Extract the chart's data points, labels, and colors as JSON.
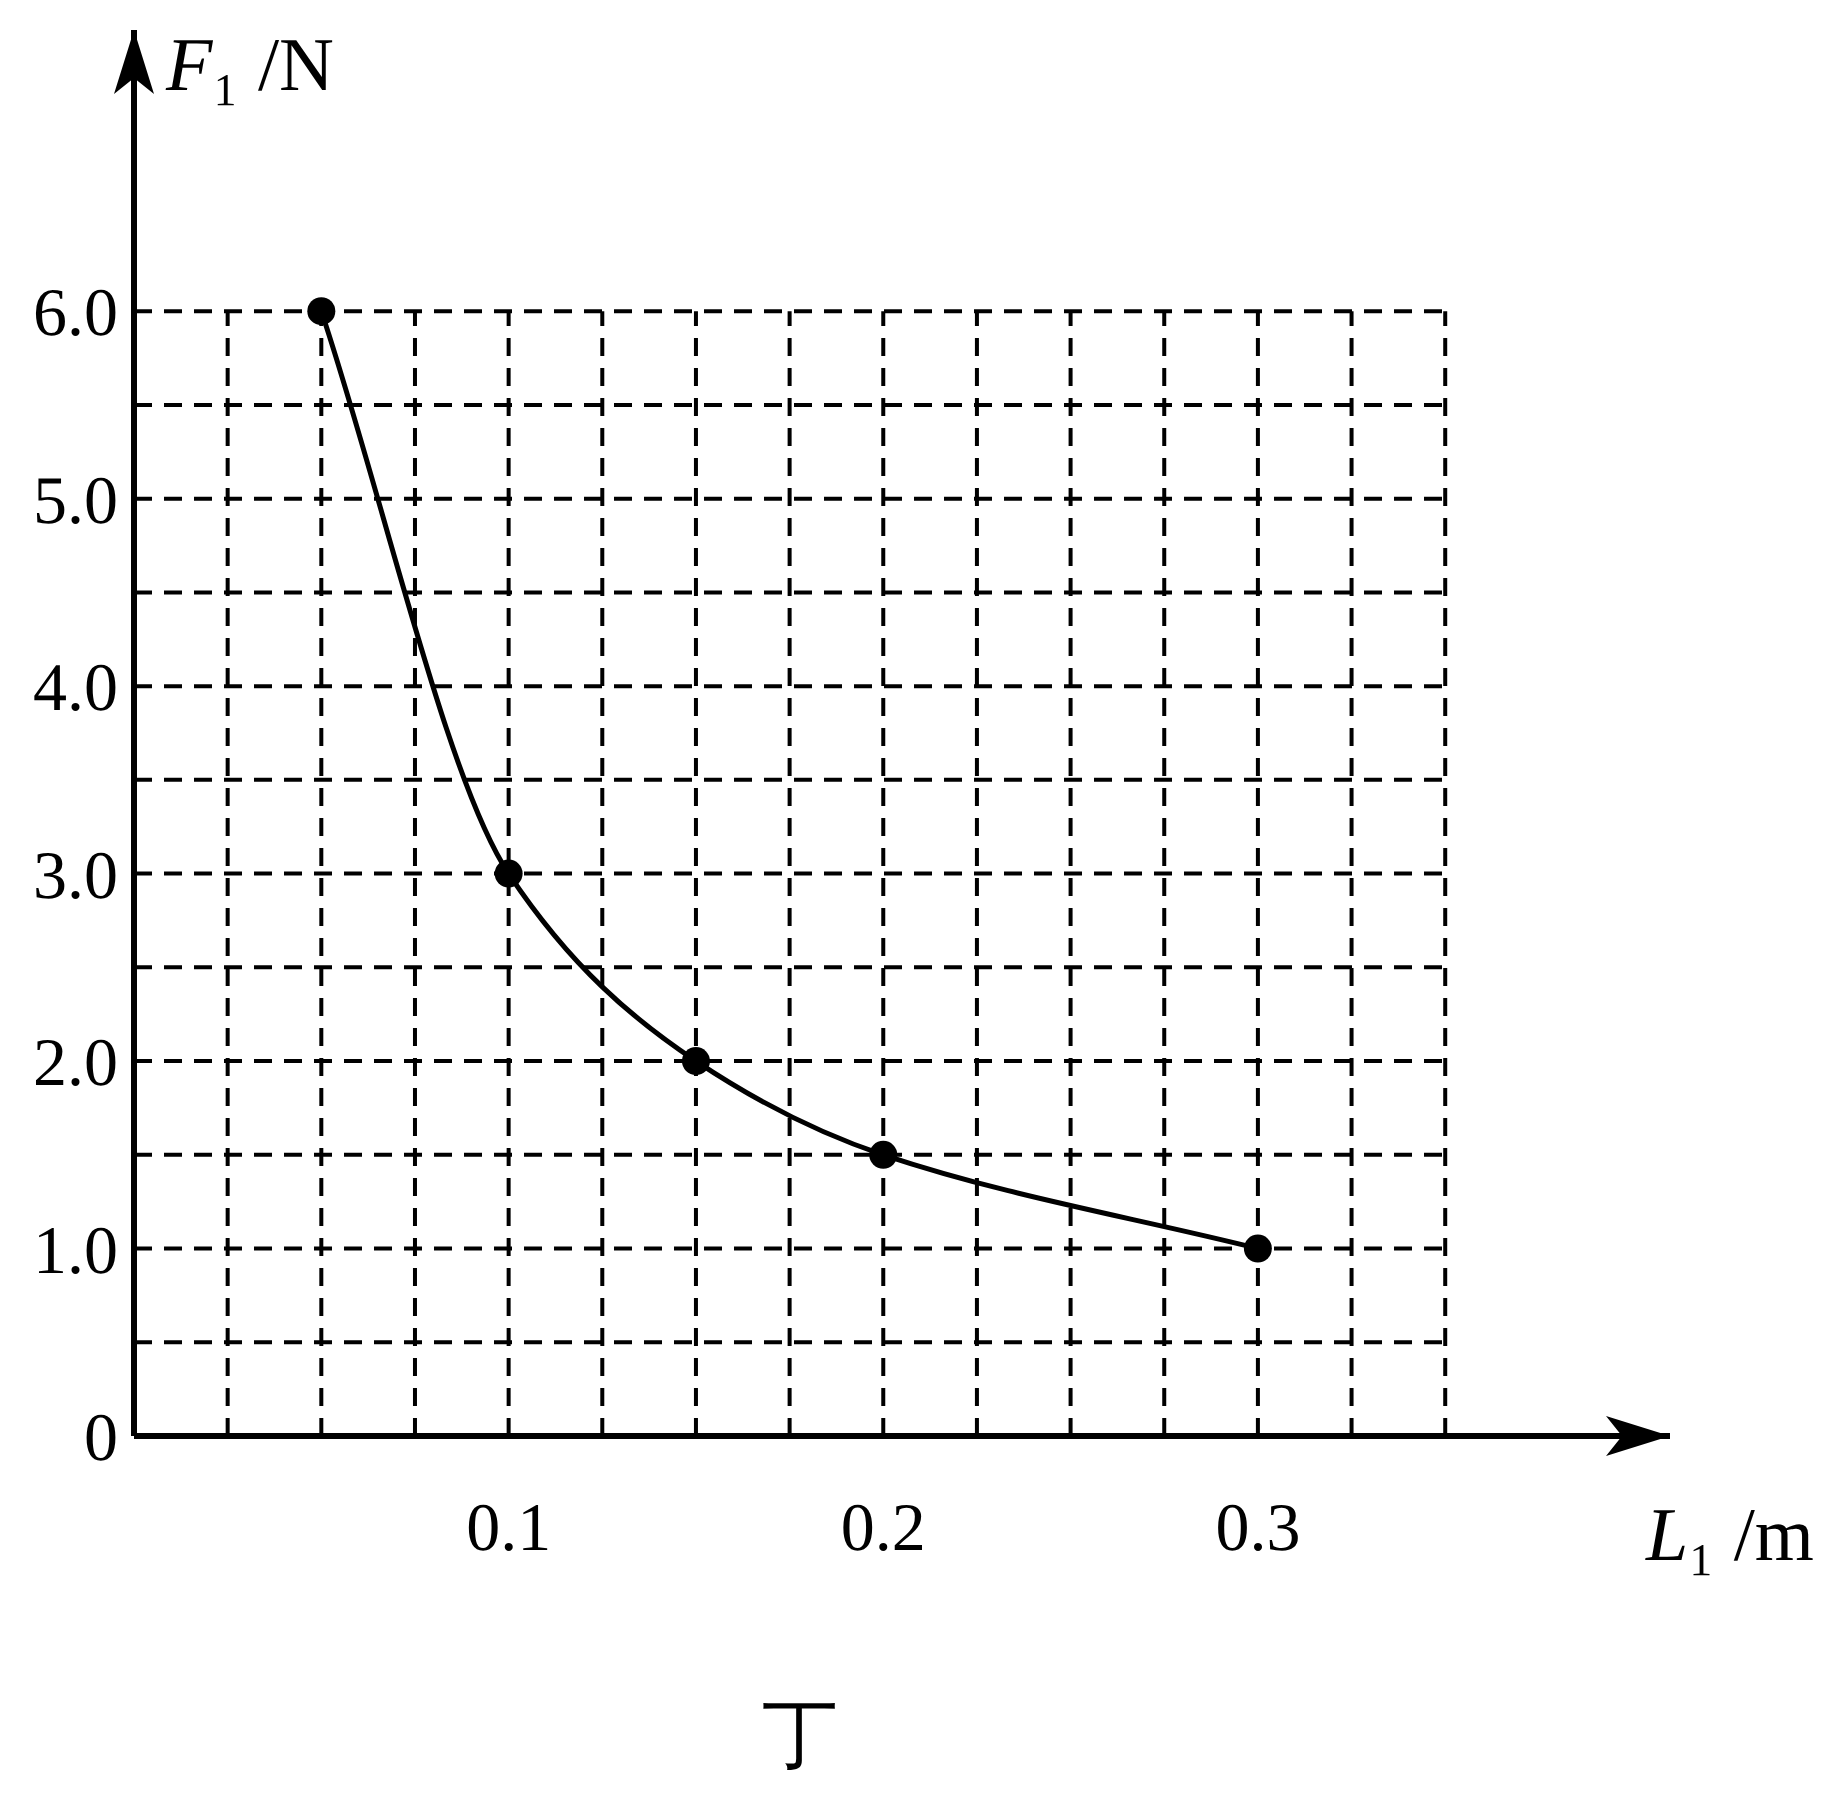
{
  "chart_data": {
    "type": "line",
    "xlabel": "L₁ /m",
    "ylabel": "F₁ /N",
    "annotations": [
      "丁"
    ],
    "xlim": [
      0,
      0.41
    ],
    "ylim": [
      0,
      7.5
    ],
    "xticks": [
      {
        "value": 0.025,
        "label": null
      },
      {
        "value": 0.05,
        "label": null
      },
      {
        "value": 0.075,
        "label": null
      },
      {
        "value": 0.1,
        "label": "0.1"
      },
      {
        "value": 0.125,
        "label": null
      },
      {
        "value": 0.15,
        "label": null
      },
      {
        "value": 0.175,
        "label": null
      },
      {
        "value": 0.2,
        "label": "0.2"
      },
      {
        "value": 0.225,
        "label": null
      },
      {
        "value": 0.25,
        "label": null
      },
      {
        "value": 0.275,
        "label": null
      },
      {
        "value": 0.3,
        "label": "0.3"
      },
      {
        "value": 0.325,
        "label": null
      },
      {
        "value": 0.35,
        "label": null
      }
    ],
    "yticks": [
      0,
      {
        "value": 0.5,
        "label": null
      },
      {
        "value": 1,
        "label": "1.0"
      },
      {
        "value": 1.5,
        "label": null
      },
      {
        "value": 2,
        "label": "2.0"
      },
      {
        "value": 2.5,
        "label": null
      },
      {
        "value": 3,
        "label": "3.0"
      },
      {
        "value": 3.5,
        "label": null
      },
      {
        "value": 4,
        "label": "4.0"
      },
      {
        "value": 4.5,
        "label": null
      },
      {
        "value": 5,
        "label": "5.0"
      },
      {
        "value": 5.5,
        "label": null
      },
      {
        "value": 6,
        "label": "6.0"
      }
    ],
    "grid": true,
    "marker": "circle",
    "line_style": "solid",
    "series": [
      {
        "color": "#000000",
        "x": [
          0.05,
          0.1,
          0.15,
          0.2,
          0.3
        ],
        "values": [
          6.0,
          3.0,
          2.0,
          1.5,
          1.0
        ]
      }
    ]
  }
}
